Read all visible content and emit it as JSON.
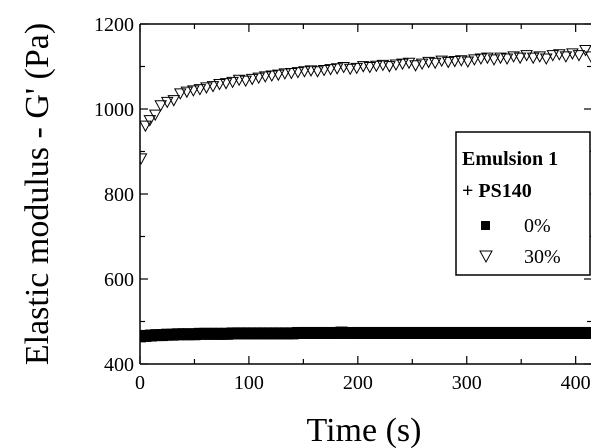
{
  "chart_data": {
    "type": "scatter",
    "title": "",
    "xlabel": "Time (s)",
    "ylabel": "Elastic modulus - G' (Pa)",
    "xlim": [
      0,
      415
    ],
    "ylim": [
      400,
      1200
    ],
    "xticks": [
      0,
      100,
      200,
      300,
      400
    ],
    "yticks": [
      400,
      600,
      800,
      1000,
      1200
    ],
    "grid": false,
    "legend": {
      "placement": "right",
      "title_line1": "Emulsion 1",
      "title_line2": "+ PS140"
    },
    "series": [
      {
        "name": "0%",
        "marker": "filled-square",
        "x": [
          0,
          5,
          10,
          15,
          20,
          25,
          30,
          35,
          40,
          45,
          50,
          55,
          60,
          65,
          70,
          75,
          80,
          85,
          90,
          95,
          100,
          105,
          110,
          115,
          120,
          125,
          130,
          135,
          140,
          145,
          150,
          155,
          160,
          165,
          170,
          175,
          180,
          185,
          190,
          195,
          200,
          205,
          210,
          215,
          220,
          225,
          230,
          235,
          240,
          245,
          250,
          255,
          260,
          265,
          270,
          275,
          280,
          285,
          290,
          295,
          300,
          305,
          310,
          315,
          320,
          325,
          330,
          335,
          340,
          345,
          350,
          355,
          360,
          365,
          370,
          375,
          380,
          385,
          390,
          395,
          400,
          405,
          410,
          415
        ],
        "y": [
          465,
          466,
          467,
          468,
          468,
          469,
          469,
          470,
          470,
          470,
          470,
          471,
          471,
          471,
          471,
          471,
          471,
          472,
          472,
          472,
          472,
          472,
          472,
          472,
          472,
          472,
          472,
          472,
          472,
          473,
          473,
          473,
          473,
          473,
          473,
          473,
          473,
          474,
          473,
          473,
          473,
          473,
          473,
          473,
          473,
          473,
          473,
          473,
          473,
          473,
          473,
          473,
          473,
          473,
          473,
          473,
          473,
          473,
          473,
          473,
          473,
          473,
          473,
          473,
          473,
          473,
          473,
          473,
          473,
          473,
          473,
          473,
          473,
          473,
          473,
          473,
          473,
          473,
          473,
          473,
          473,
          473,
          473,
          473
        ]
      },
      {
        "name": "30%",
        "marker": "open-down-triangle",
        "x": [
          1,
          5,
          9,
          14,
          19,
          25,
          31,
          37,
          43,
          49,
          55,
          61,
          67,
          73,
          79,
          85,
          91,
          97,
          103,
          109,
          115,
          121,
          127,
          133,
          139,
          145,
          151,
          157,
          163,
          169,
          175,
          181,
          187,
          193,
          199,
          205,
          211,
          217,
          223,
          229,
          235,
          241,
          247,
          253,
          259,
          265,
          271,
          277,
          283,
          289,
          295,
          301,
          307,
          313,
          319,
          325,
          331,
          337,
          343,
          349,
          355,
          361,
          367,
          373,
          379,
          385,
          391,
          397,
          403,
          409,
          414
        ],
        "y": [
          885,
          962,
          975,
          988,
          1010,
          1018,
          1022,
          1038,
          1042,
          1045,
          1048,
          1052,
          1055,
          1060,
          1062,
          1065,
          1070,
          1068,
          1072,
          1075,
          1078,
          1080,
          1082,
          1085,
          1086,
          1088,
          1090,
          1092,
          1090,
          1093,
          1095,
          1097,
          1100,
          1096,
          1098,
          1102,
          1100,
          1103,
          1105,
          1102,
          1106,
          1108,
          1110,
          1104,
          1108,
          1112,
          1110,
          1115,
          1112,
          1114,
          1116,
          1113,
          1118,
          1120,
          1122,
          1118,
          1122,
          1120,
          1125,
          1122,
          1128,
          1122,
          1125,
          1120,
          1128,
          1130,
          1125,
          1132,
          1128,
          1140,
          1125
        ]
      }
    ]
  }
}
